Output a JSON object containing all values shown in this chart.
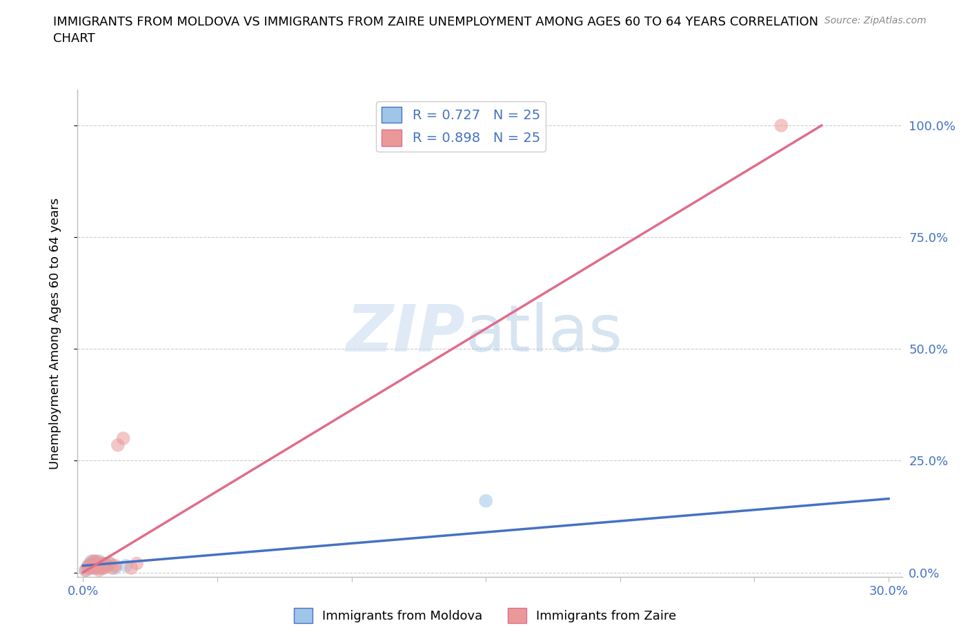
{
  "title": "IMMIGRANTS FROM MOLDOVA VS IMMIGRANTS FROM ZAIRE UNEMPLOYMENT AMONG AGES 60 TO 64 YEARS CORRELATION\nCHART",
  "source": "Source: ZipAtlas.com",
  "xlabel": "",
  "ylabel": "Unemployment Among Ages 60 to 64 years",
  "xlim": [
    -0.002,
    0.305
  ],
  "ylim": [
    -0.01,
    1.08
  ],
  "xticks": [
    0.0,
    0.05,
    0.1,
    0.15,
    0.2,
    0.25,
    0.3
  ],
  "yticks": [
    0.0,
    0.25,
    0.5,
    0.75,
    1.0
  ],
  "ytick_labels": [
    "0.0%",
    "25.0%",
    "50.0%",
    "75.0%",
    "100.0%"
  ],
  "xtick_labels": [
    "0.0%",
    "",
    "",
    "",
    "",
    "",
    "30.0%"
  ],
  "moldova_color": "#9fc5e8",
  "zaire_color": "#ea9999",
  "moldova_line_color": "#4472c4",
  "zaire_line_color": "#e06c8a",
  "moldova_R": 0.727,
  "moldova_N": 25,
  "zaire_R": 0.898,
  "zaire_N": 25,
  "moldova_scatter_x": [
    0.001,
    0.002,
    0.002,
    0.003,
    0.003,
    0.003,
    0.003,
    0.004,
    0.004,
    0.004,
    0.005,
    0.005,
    0.005,
    0.006,
    0.006,
    0.006,
    0.007,
    0.007,
    0.008,
    0.008,
    0.009,
    0.01,
    0.012,
    0.15,
    0.016
  ],
  "moldova_scatter_y": [
    0.005,
    0.01,
    0.015,
    0.01,
    0.015,
    0.02,
    0.025,
    0.01,
    0.02,
    0.025,
    0.01,
    0.015,
    0.02,
    0.01,
    0.02,
    0.025,
    0.01,
    0.02,
    0.015,
    0.02,
    0.015,
    0.02,
    0.01,
    0.16,
    0.015
  ],
  "zaire_scatter_x": [
    0.001,
    0.002,
    0.002,
    0.003,
    0.003,
    0.004,
    0.004,
    0.005,
    0.005,
    0.005,
    0.006,
    0.006,
    0.007,
    0.007,
    0.008,
    0.008,
    0.009,
    0.01,
    0.011,
    0.012,
    0.013,
    0.015,
    0.018,
    0.02,
    0.26
  ],
  "zaire_scatter_y": [
    0.005,
    0.01,
    0.015,
    0.01,
    0.02,
    0.015,
    0.025,
    0.01,
    0.02,
    0.025,
    0.005,
    0.015,
    0.01,
    0.02,
    0.01,
    0.02,
    0.015,
    0.02,
    0.01,
    0.015,
    0.285,
    0.3,
    0.01,
    0.02,
    1.0
  ],
  "moldova_line_x": [
    0.0,
    0.3
  ],
  "moldova_line_y": [
    0.015,
    0.165
  ],
  "zaire_line_x": [
    0.0,
    0.275
  ],
  "zaire_line_y": [
    0.0,
    1.0
  ],
  "bg_color": "#ffffff",
  "grid_color": "#cccccc",
  "tick_color": "#4472c4",
  "ylabel_color": "#000000",
  "title_color": "#000000"
}
